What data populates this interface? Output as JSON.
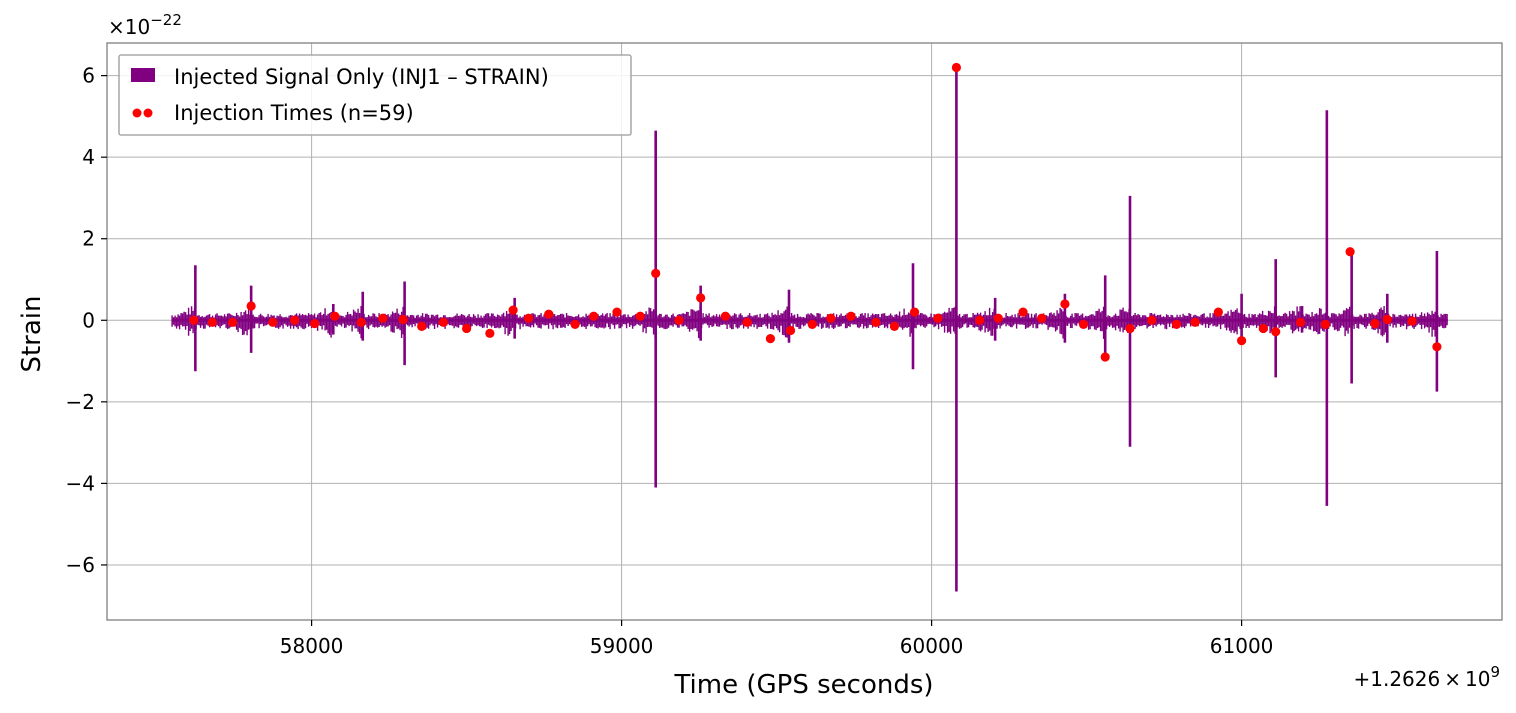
{
  "chart_data": {
    "type": "line",
    "title": "",
    "xlabel": "Time (GPS seconds)",
    "ylabel": "Strain",
    "x_offset_label": "+1.2626",
    "x_offset_times": "×",
    "x_offset_exp_base": "10",
    "x_offset_exp": "9",
    "y_scale_times": "×10",
    "y_scale_exp": "−22",
    "xlim": [
      57340,
      61840
    ],
    "ylim": [
      -7.35,
      6.8
    ],
    "x_ticks": [
      58000,
      59000,
      60000,
      61000
    ],
    "x_tick_labels": [
      "58000",
      "59000",
      "60000",
      "61000"
    ],
    "y_ticks": [
      -6,
      -4,
      -2,
      0,
      2,
      4,
      6
    ],
    "y_tick_labels": [
      "−6",
      "−4",
      "−2",
      "0",
      "2",
      "4",
      "6"
    ],
    "grid": true,
    "legend_position": "top-left",
    "colors": {
      "signal": "#800080",
      "markers": "#ff0000"
    },
    "series": [
      {
        "name": "Injected Signal Only (INJ1 – STRAIN)",
        "style": "line",
        "x_start": 57550,
        "x_end": 61665,
        "band_pos": 0.18,
        "band_neg": -0.22,
        "spikes": [
          {
            "x": 57625,
            "max": 1.35,
            "min": -1.25
          },
          {
            "x": 57805,
            "max": 0.85,
            "min": -0.8
          },
          {
            "x": 58070,
            "max": 0.4,
            "min": -0.35
          },
          {
            "x": 58165,
            "max": 0.7,
            "min": -0.5
          },
          {
            "x": 58300,
            "max": 0.95,
            "min": -1.1
          },
          {
            "x": 58655,
            "max": 0.55,
            "min": -0.45
          },
          {
            "x": 59110,
            "max": 4.65,
            "min": -4.1
          },
          {
            "x": 59255,
            "max": 0.85,
            "min": -0.5
          },
          {
            "x": 59540,
            "max": 0.75,
            "min": -0.55
          },
          {
            "x": 59940,
            "max": 1.4,
            "min": -1.2
          },
          {
            "x": 60080,
            "max": 6.15,
            "min": -6.65
          },
          {
            "x": 60205,
            "max": 0.55,
            "min": -0.5
          },
          {
            "x": 60430,
            "max": 0.65,
            "min": -0.55
          },
          {
            "x": 60560,
            "max": 1.1,
            "min": -0.95
          },
          {
            "x": 60640,
            "max": 3.05,
            "min": -3.1
          },
          {
            "x": 61000,
            "max": 0.65,
            "min": -0.6
          },
          {
            "x": 61110,
            "max": 1.5,
            "min": -1.4
          },
          {
            "x": 61195,
            "max": 0.35,
            "min": -0.3
          },
          {
            "x": 61275,
            "max": 5.15,
            "min": -4.55
          },
          {
            "x": 61355,
            "max": 1.7,
            "min": -1.55
          },
          {
            "x": 61470,
            "max": 0.65,
            "min": -0.55
          },
          {
            "x": 61630,
            "max": 1.7,
            "min": -1.75
          }
        ]
      },
      {
        "name": "Injection Times (n=59)",
        "style": "scatter",
        "x": [
          57620,
          57680,
          57745,
          57805,
          57875,
          57945,
          58010,
          58075,
          58160,
          58230,
          58295,
          58355,
          58425,
          58500,
          58575,
          58650,
          58700,
          58765,
          58850,
          58910,
          58985,
          59060,
          59110,
          59185,
          59255,
          59335,
          59405,
          59480,
          59545,
          59615,
          59675,
          59740,
          59820,
          59880,
          59945,
          60020,
          60080,
          60155,
          60215,
          60295,
          60355,
          60430,
          60490,
          60560,
          60640,
          60710,
          60790,
          60850,
          60925,
          61000,
          61070,
          61110,
          61190,
          61270,
          61350,
          61430,
          61470,
          61550,
          61630
        ],
        "y": [
          0.0,
          -0.05,
          -0.05,
          0.35,
          -0.05,
          0.0,
          -0.08,
          0.1,
          -0.05,
          0.05,
          0.02,
          -0.15,
          -0.05,
          -0.2,
          -0.32,
          0.25,
          0.05,
          0.15,
          -0.1,
          0.1,
          0.2,
          0.1,
          1.15,
          0.0,
          0.55,
          0.1,
          -0.05,
          -0.45,
          -0.25,
          -0.1,
          0.05,
          0.1,
          -0.05,
          -0.15,
          0.2,
          0.05,
          6.2,
          0.0,
          0.05,
          0.2,
          0.05,
          0.4,
          -0.1,
          -0.9,
          -0.2,
          0.0,
          -0.1,
          -0.05,
          0.2,
          -0.5,
          -0.2,
          -0.28,
          -0.05,
          -0.1,
          1.68,
          -0.08,
          0.02,
          -0.02,
          -0.65
        ]
      }
    ]
  }
}
